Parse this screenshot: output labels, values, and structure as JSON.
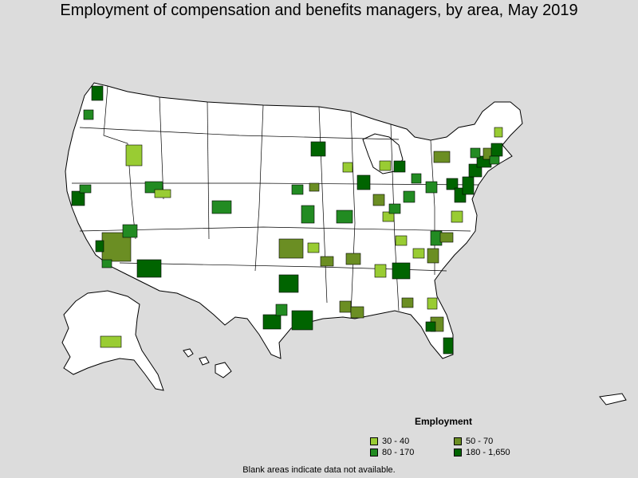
{
  "title": "Employment of compensation and benefits managers, by area, May 2019",
  "legend": {
    "title": "Employment",
    "items": [
      {
        "label": "30 - 40",
        "color": "#99cc33"
      },
      {
        "label": "50 - 70",
        "color": "#6b8e23"
      },
      {
        "label": "80 - 170",
        "color": "#228b22"
      },
      {
        "label": "180 - 1,650",
        "color": "#006400"
      }
    ]
  },
  "footnote": "Blank areas indicate data not available.",
  "colors": {
    "background": "#dcdcdc",
    "land": "#ffffff",
    "border": "#000000"
  }
}
